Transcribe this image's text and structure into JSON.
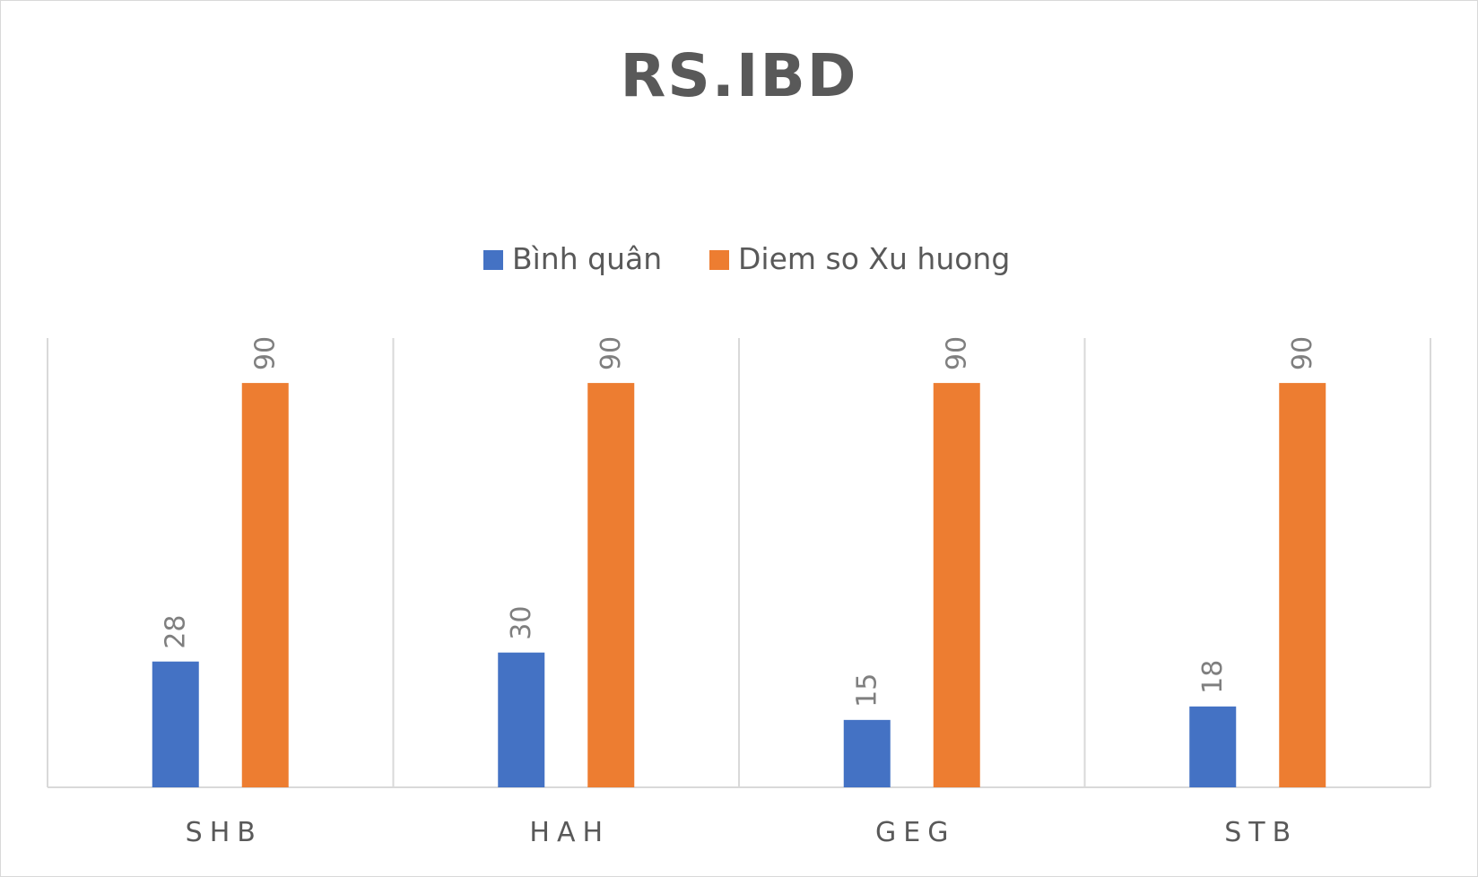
{
  "chart_data": {
    "type": "bar",
    "title": "RS.IBD",
    "categories": [
      "SHB",
      "HAH",
      "GEG",
      "STB"
    ],
    "series": [
      {
        "name": "Bình quân",
        "values": [
          28,
          30,
          15,
          18
        ],
        "color": "#4472c4"
      },
      {
        "name": "Diem so Xu huong",
        "values": [
          90,
          90,
          90,
          90
        ],
        "color": "#ed7d31"
      }
    ],
    "ylim": [
      0,
      100
    ],
    "legend": "top-center",
    "grid": "vertical category separators",
    "data_labels": true
  }
}
